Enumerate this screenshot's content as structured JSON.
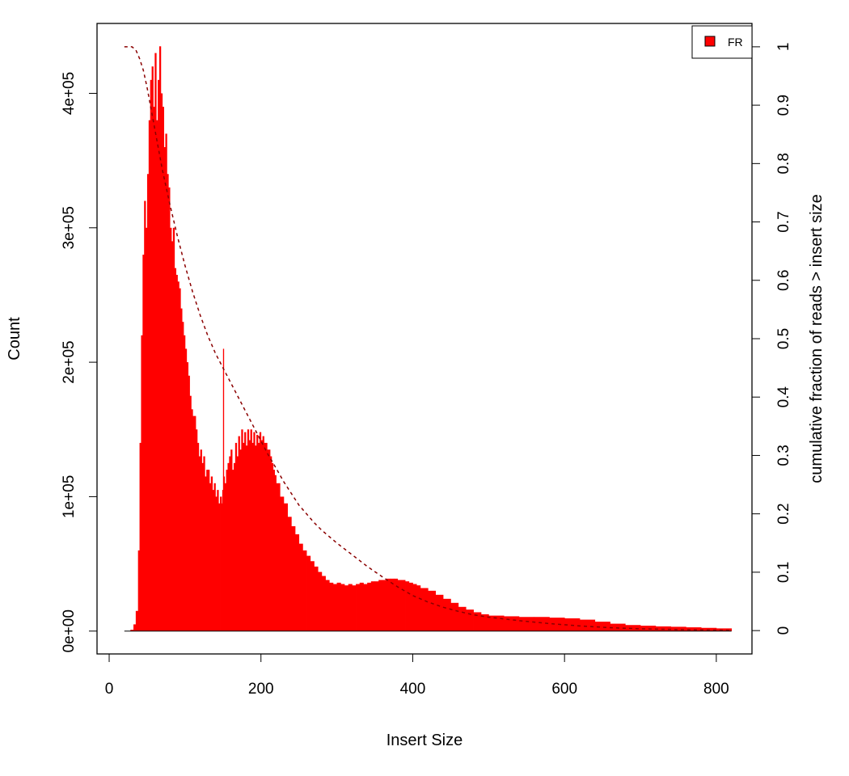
{
  "chart_data": {
    "type": "bar",
    "title": "",
    "xlabel": "Insert Size",
    "ylabel": "Count",
    "y2label": "cumulative fraction of reads > insert size",
    "xlim": [
      -16,
      847
    ],
    "ylim": [
      -17000,
      452000
    ],
    "y2lim": [
      -0.04,
      1.04
    ],
    "x_ticks": [
      0,
      200,
      400,
      600,
      800
    ],
    "x_tick_labels": [
      "0",
      "200",
      "400",
      "600",
      "800"
    ],
    "y_ticks": [
      0,
      100000,
      200000,
      300000,
      400000
    ],
    "y_tick_labels": [
      "0e+00",
      "1e+05",
      "2e+05",
      "3e+05",
      "4e+05"
    ],
    "y2_ticks": [
      0,
      0.1,
      0.2,
      0.3,
      0.4,
      0.5,
      0.6,
      0.7,
      0.8,
      0.9,
      1
    ],
    "y2_tick_labels": [
      "0",
      "0.1",
      "0.2",
      "0.3",
      "0.4",
      "0.5",
      "0.6",
      "0.7",
      "0.8",
      "0.9",
      "1"
    ],
    "grid": false,
    "legend_position": "top-right",
    "series": [
      {
        "name": "FR",
        "color": "#ff0000",
        "x": [
          20,
          28,
          32,
          35,
          38,
          40,
          42,
          44,
          46,
          48,
          50,
          52,
          54,
          56,
          58,
          60,
          62,
          64,
          66,
          68,
          70,
          72,
          74,
          76,
          78,
          80,
          82,
          84,
          86,
          88,
          90,
          92,
          94,
          96,
          98,
          100,
          102,
          104,
          106,
          108,
          110,
          112,
          114,
          116,
          118,
          120,
          122,
          124,
          126,
          128,
          130,
          132,
          134,
          136,
          138,
          140,
          142,
          144,
          146,
          148,
          149,
          150,
          151,
          152,
          154,
          156,
          158,
          160,
          162,
          164,
          166,
          168,
          170,
          172,
          174,
          176,
          178,
          180,
          182,
          184,
          186,
          188,
          190,
          192,
          194,
          196,
          198,
          200,
          202,
          204,
          206,
          208,
          210,
          212,
          214,
          216,
          218,
          220,
          225,
          230,
          235,
          240,
          245,
          250,
          255,
          260,
          265,
          270,
          275,
          280,
          285,
          290,
          295,
          300,
          305,
          310,
          315,
          320,
          325,
          330,
          335,
          340,
          345,
          350,
          355,
          360,
          365,
          370,
          375,
          380,
          385,
          390,
          395,
          400,
          405,
          410,
          420,
          430,
          440,
          450,
          460,
          470,
          480,
          490,
          500,
          520,
          540,
          560,
          580,
          600,
          620,
          640,
          660,
          680,
          700,
          720,
          740,
          760,
          780,
          800,
          820
        ],
        "values": [
          0,
          1000,
          5000,
          15000,
          60000,
          140000,
          220000,
          280000,
          320000,
          300000,
          340000,
          380000,
          410000,
          420000,
          390000,
          430000,
          380000,
          410000,
          435000,
          400000,
          390000,
          360000,
          370000,
          340000,
          330000,
          300000,
          290000,
          300000,
          270000,
          265000,
          260000,
          255000,
          240000,
          230000,
          220000,
          210000,
          200000,
          190000,
          175000,
          165000,
          160000,
          160000,
          150000,
          140000,
          130000,
          135000,
          125000,
          130000,
          115000,
          120000,
          120000,
          110000,
          115000,
          105000,
          110000,
          100000,
          105000,
          95000,
          100000,
          95000,
          105000,
          210000,
          115000,
          110000,
          120000,
          125000,
          130000,
          135000,
          120000,
          125000,
          140000,
          130000,
          145000,
          135000,
          150000,
          140000,
          148000,
          138000,
          150000,
          142000,
          150000,
          140000,
          148000,
          138000,
          146000,
          140000,
          148000,
          142000,
          145000,
          140000,
          140000,
          135000,
          135000,
          130000,
          125000,
          120000,
          116000,
          110000,
          100000,
          95000,
          85000,
          78000,
          72000,
          65000,
          60000,
          56000,
          52000,
          48000,
          44000,
          41000,
          38000,
          36000,
          35000,
          36000,
          35000,
          34000,
          35000,
          34000,
          35000,
          36000,
          35000,
          36000,
          37000,
          37000,
          38000,
          38000,
          39000,
          39000,
          39000,
          38000,
          38000,
          37000,
          36000,
          35000,
          34000,
          32000,
          30000,
          27000,
          24000,
          21000,
          18000,
          16000,
          14000,
          12500,
          11500,
          11000,
          10500,
          10500,
          10000,
          9500,
          8500,
          7000,
          5500,
          4500,
          4000,
          3500,
          3200,
          2800,
          2400,
          2000,
          1500
        ]
      }
    ],
    "cumulative_line": {
      "color": "#8b0000",
      "style": "dashed",
      "x": [
        20,
        30,
        35,
        40,
        45,
        50,
        55,
        60,
        65,
        70,
        75,
        80,
        90,
        100,
        110,
        120,
        130,
        140,
        150,
        160,
        170,
        180,
        190,
        200,
        210,
        220,
        230,
        240,
        250,
        260,
        270,
        280,
        300,
        320,
        340,
        360,
        380,
        400,
        420,
        440,
        460,
        480,
        500,
        540,
        580,
        620,
        660,
        700,
        760,
        820
      ],
      "values": [
        1,
        1,
        0.995,
        0.98,
        0.96,
        0.93,
        0.895,
        0.86,
        0.825,
        0.79,
        0.76,
        0.73,
        0.675,
        0.625,
        0.58,
        0.54,
        0.505,
        0.475,
        0.45,
        0.425,
        0.4,
        0.375,
        0.35,
        0.325,
        0.3,
        0.278,
        0.255,
        0.235,
        0.215,
        0.2,
        0.185,
        0.172,
        0.15,
        0.13,
        0.11,
        0.092,
        0.075,
        0.06,
        0.049,
        0.04,
        0.033,
        0.027,
        0.023,
        0.017,
        0.012,
        0.008,
        0.005,
        0.003,
        0.0015,
        0.0005
      ]
    }
  }
}
